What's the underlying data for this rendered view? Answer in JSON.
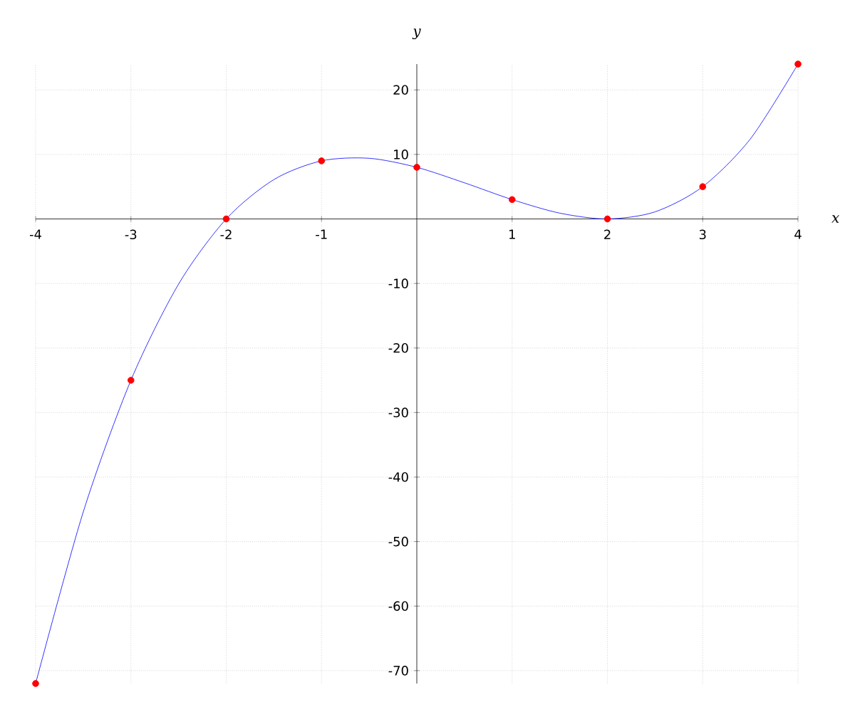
{
  "chart_data": {
    "type": "line",
    "xlabel": "x",
    "ylabel": "y",
    "xlim": [
      -4,
      4
    ],
    "ylim": [
      -72,
      24
    ],
    "xticks": [
      -4,
      -3,
      -2,
      -1,
      1,
      2,
      3,
      4
    ],
    "yticks": [
      -70,
      -60,
      -50,
      -40,
      -30,
      -20,
      -10,
      10,
      20
    ],
    "grid": true,
    "series": [
      {
        "color": "#0000ff",
        "x": [
          -4,
          -3.5,
          -3,
          -2.5,
          -2,
          -1.5,
          -1,
          -0.5,
          0,
          0.5,
          1,
          1.5,
          2,
          2.5,
          3,
          3.5,
          4
        ],
        "values": [
          -72,
          -45.4,
          -25,
          -10.1,
          0,
          6.1,
          9,
          9.4,
          8,
          5.6,
          3,
          0.9,
          0,
          1.1,
          5,
          12.4,
          24
        ]
      },
      {
        "type": "scatter",
        "color": "#ff0000",
        "marker": "circle",
        "x": [
          -4,
          -3,
          -2,
          -1,
          0,
          1,
          2,
          3,
          4
        ],
        "values": [
          -72,
          -25,
          0,
          9,
          8,
          3,
          0,
          5,
          24
        ]
      }
    ]
  }
}
